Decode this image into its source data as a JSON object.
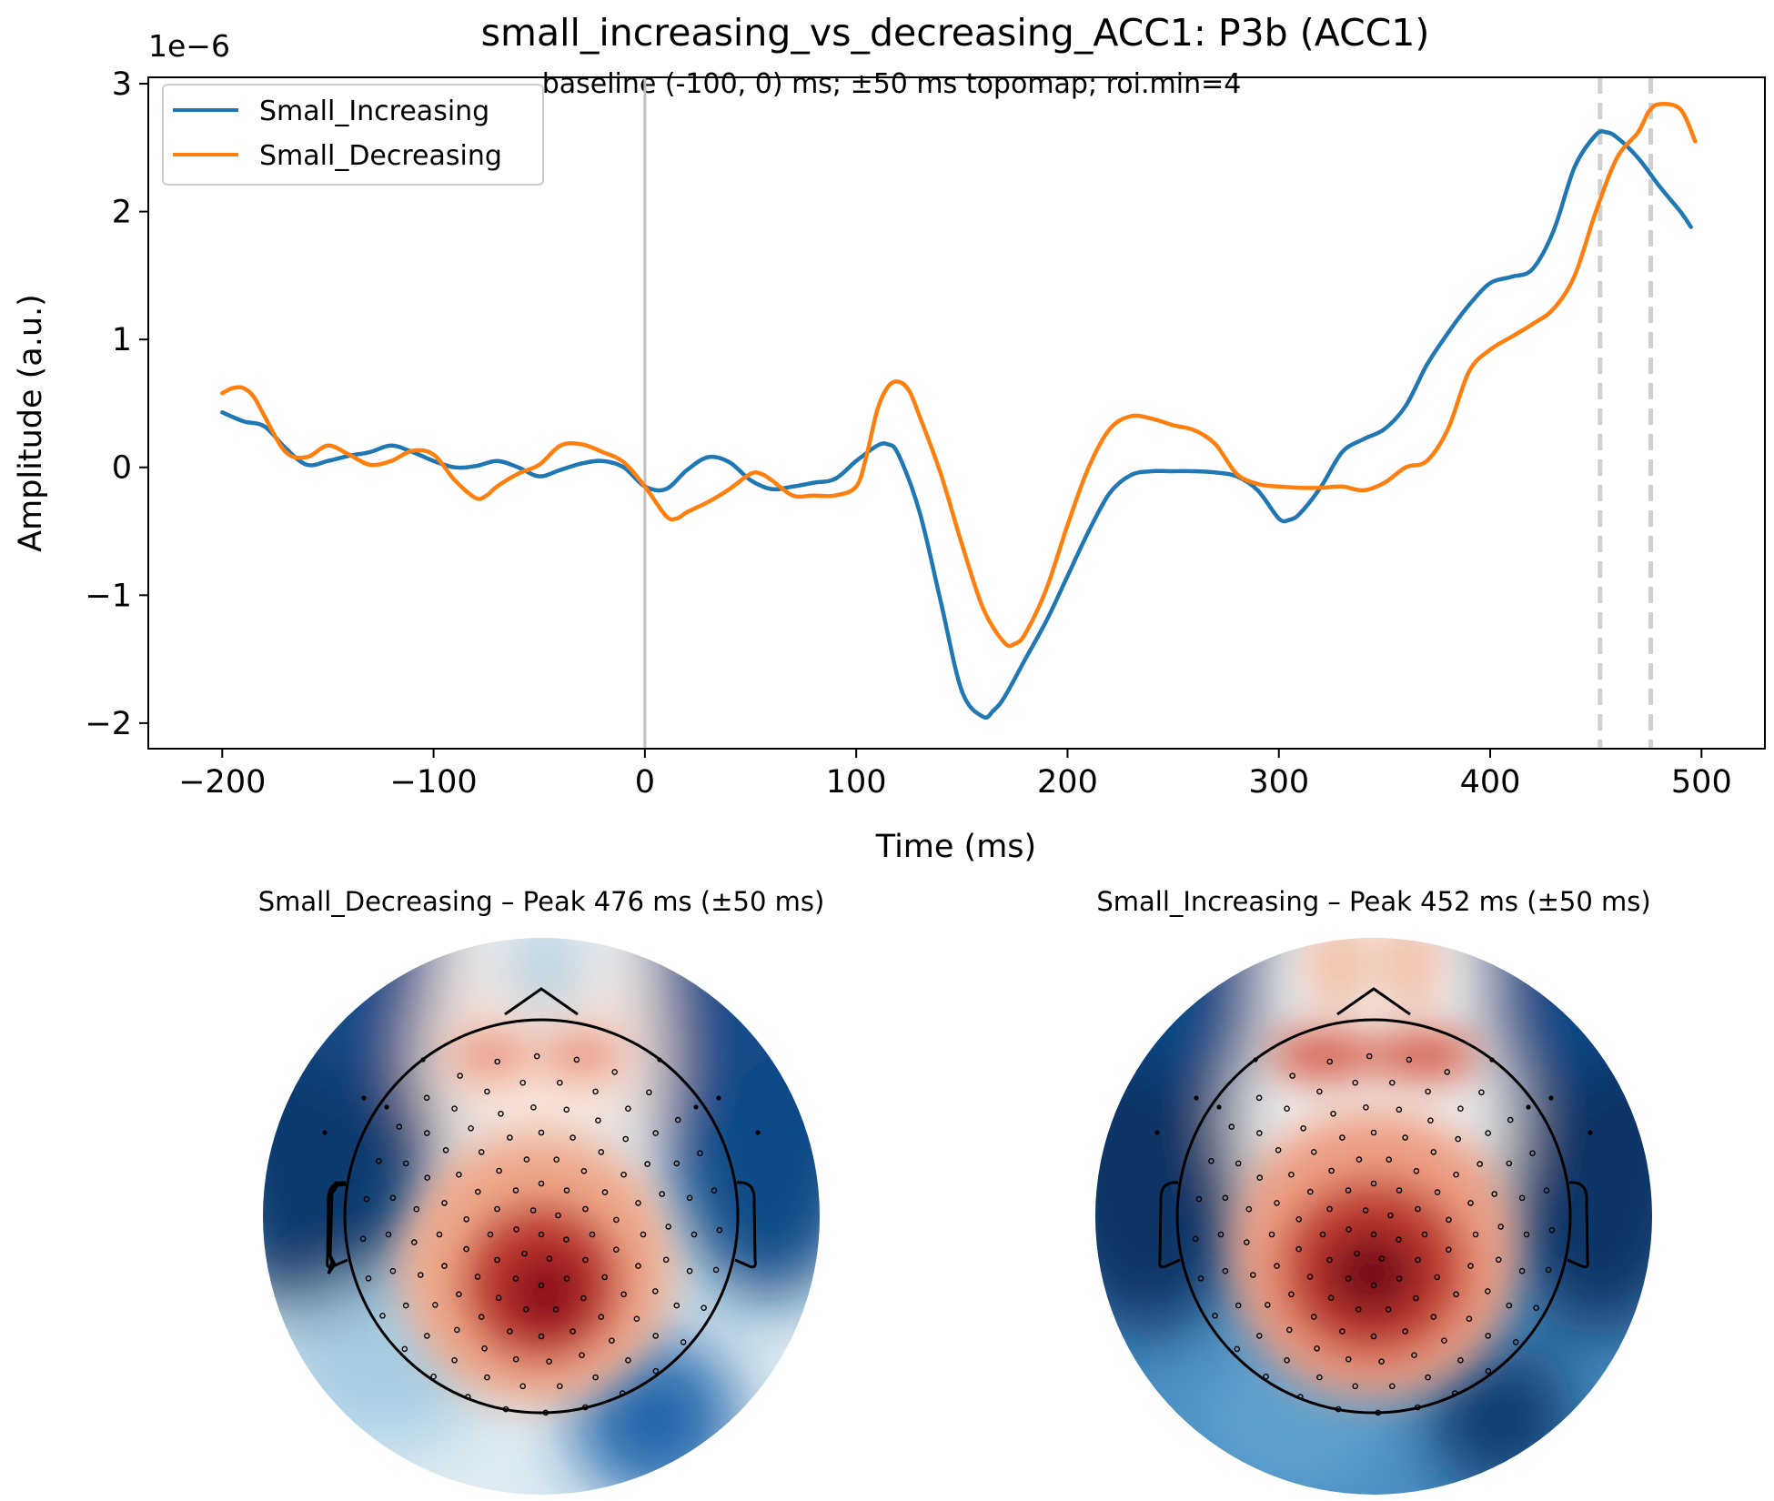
{
  "title": "small_increasing_vs_decreasing_ACC1: P3b (ACC1)",
  "subtitle": "baseline (-100, 0) ms; ±50 ms topomap; roi.min=4",
  "colors": {
    "increasing": "#1f77b4",
    "decreasing": "#ff7f0e",
    "axis": "#000000",
    "zero_line": "#bfbfbf",
    "peak_line": "#d0d0d0"
  },
  "chart_data": [
    {
      "type": "line",
      "title": "small_increasing_vs_decreasing_ACC1: P3b (ACC1)",
      "subtitle": "baseline (-100, 0) ms; ±50 ms topomap; roi.min=4",
      "xlabel": "Time (ms)",
      "ylabel": "Amplitude (a.u.)",
      "y_scale_label": "1e−6",
      "xlim": [
        -235,
        530
      ],
      "ylim": [
        -2.2,
        3.05
      ],
      "xticks": [
        -200,
        -100,
        0,
        100,
        200,
        300,
        400,
        500
      ],
      "xtick_labels": [
        "−200",
        "−100",
        "0",
        "100",
        "200",
        "300",
        "400",
        "500"
      ],
      "yticks": [
        -2,
        -1,
        0,
        1,
        2,
        3
      ],
      "ytick_labels": [
        "−2",
        "−1",
        "0",
        "1",
        "2",
        "3"
      ],
      "grid": false,
      "legend_position": "top-left",
      "vlines": [
        {
          "x": 0,
          "style": "solid"
        },
        {
          "x": 452,
          "style": "dashed"
        },
        {
          "x": 476,
          "style": "dashed"
        }
      ],
      "series": [
        {
          "name": "Small_Increasing",
          "color": "#1f77b4",
          "x": [
            -200,
            -190,
            -180,
            -170,
            -160,
            -150,
            -140,
            -130,
            -120,
            -110,
            -100,
            -90,
            -80,
            -70,
            -60,
            -50,
            -40,
            -30,
            -20,
            -10,
            0,
            10,
            20,
            30,
            40,
            50,
            60,
            70,
            80,
            90,
            100,
            110,
            115,
            120,
            130,
            140,
            150,
            160,
            165,
            170,
            180,
            190,
            200,
            210,
            220,
            230,
            240,
            250,
            260,
            270,
            280,
            290,
            300,
            305,
            310,
            320,
            330,
            340,
            350,
            360,
            370,
            380,
            390,
            400,
            410,
            420,
            430,
            440,
            450,
            455,
            460,
            470,
            480,
            490,
            495
          ],
          "y": [
            0.43,
            0.36,
            0.32,
            0.15,
            0.02,
            0.05,
            0.09,
            0.12,
            0.17,
            0.12,
            0.05,
            0.0,
            0.01,
            0.05,
            0.0,
            -0.07,
            -0.02,
            0.03,
            0.05,
            0.0,
            -0.15,
            -0.17,
            -0.02,
            0.08,
            0.04,
            -0.1,
            -0.17,
            -0.15,
            -0.12,
            -0.09,
            0.05,
            0.17,
            0.18,
            0.1,
            -0.35,
            -1.05,
            -1.75,
            -1.95,
            -1.9,
            -1.8,
            -1.5,
            -1.2,
            -0.85,
            -0.5,
            -0.2,
            -0.06,
            -0.03,
            -0.03,
            -0.03,
            -0.04,
            -0.07,
            -0.18,
            -0.4,
            -0.41,
            -0.36,
            -0.15,
            0.12,
            0.22,
            0.3,
            0.48,
            0.8,
            1.05,
            1.27,
            1.44,
            1.49,
            1.55,
            1.85,
            2.35,
            2.6,
            2.62,
            2.58,
            2.42,
            2.2,
            2.0,
            1.88
          ]
        },
        {
          "name": "Small_Decreasing",
          "color": "#ff7f0e",
          "x": [
            -200,
            -195,
            -190,
            -185,
            -180,
            -170,
            -160,
            -150,
            -140,
            -130,
            -120,
            -110,
            -100,
            -90,
            -80,
            -75,
            -70,
            -60,
            -50,
            -40,
            -30,
            -20,
            -10,
            0,
            10,
            15,
            20,
            30,
            40,
            50,
            55,
            60,
            70,
            80,
            90,
            100,
            105,
            110,
            115,
            120,
            125,
            130,
            140,
            150,
            160,
            170,
            175,
            180,
            190,
            200,
            210,
            220,
            230,
            240,
            250,
            260,
            270,
            280,
            290,
            300,
            310,
            320,
            330,
            340,
            350,
            360,
            370,
            380,
            390,
            400,
            410,
            420,
            430,
            440,
            450,
            460,
            470,
            475,
            480,
            490,
            497
          ],
          "y": [
            0.58,
            0.62,
            0.62,
            0.55,
            0.4,
            0.12,
            0.08,
            0.17,
            0.1,
            0.02,
            0.05,
            0.13,
            0.1,
            -0.1,
            -0.24,
            -0.22,
            -0.15,
            -0.05,
            0.02,
            0.17,
            0.18,
            0.12,
            0.04,
            -0.15,
            -0.38,
            -0.4,
            -0.35,
            -0.27,
            -0.17,
            -0.05,
            -0.05,
            -0.1,
            -0.22,
            -0.22,
            -0.22,
            -0.15,
            0.1,
            0.45,
            0.63,
            0.67,
            0.6,
            0.4,
            -0.05,
            -0.6,
            -1.1,
            -1.37,
            -1.38,
            -1.3,
            -0.95,
            -0.45,
            0.0,
            0.3,
            0.4,
            0.38,
            0.33,
            0.29,
            0.18,
            -0.05,
            -0.13,
            -0.15,
            -0.16,
            -0.16,
            -0.15,
            -0.18,
            -0.12,
            0.0,
            0.05,
            0.3,
            0.75,
            0.92,
            1.02,
            1.12,
            1.24,
            1.5,
            2.0,
            2.42,
            2.62,
            2.78,
            2.84,
            2.8,
            2.55
          ]
        }
      ]
    }
  ],
  "topomaps": [
    {
      "title": "Small_Decreasing – Peak 476 ms (±50 ms)"
    },
    {
      "title": "Small_Increasing – Peak 452 ms (±50 ms)"
    }
  ]
}
